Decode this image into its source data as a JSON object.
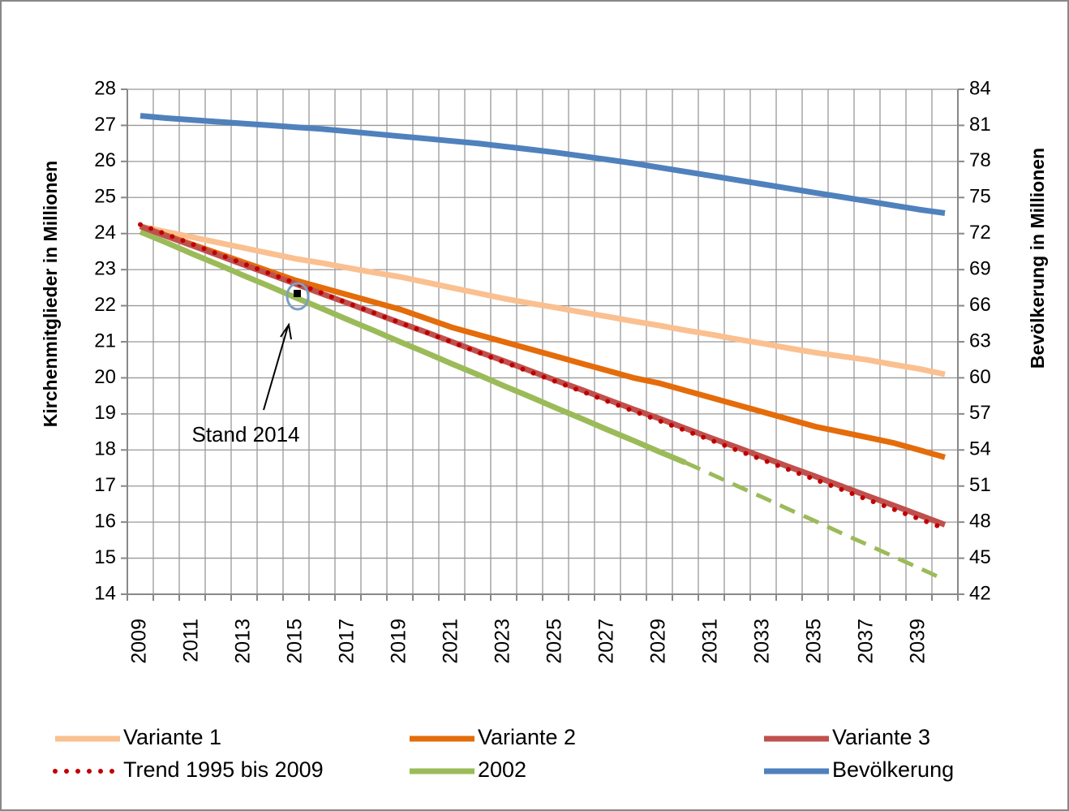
{
  "chart_data": {
    "type": "line",
    "categories": [
      "2009",
      null,
      "2011",
      null,
      "2013",
      null,
      "2015",
      null,
      "2017",
      null,
      "2019",
      null,
      "2021",
      null,
      "2023",
      null,
      "2025",
      null,
      "2027",
      null,
      "2029",
      null,
      "2031",
      null,
      "2033",
      null,
      "2035",
      null,
      "2037",
      null,
      "2039",
      null
    ],
    "y_label": "Kirchenmitglieder in Millionen",
    "y2_label": "Bevölkerung in Millionen",
    "ylim": [
      14,
      28
    ],
    "yticks": [
      14,
      15,
      16,
      17,
      18,
      19,
      20,
      21,
      22,
      23,
      24,
      25,
      26,
      27,
      28
    ],
    "y2lim": [
      42,
      84
    ],
    "y2ticks": [
      42,
      45,
      48,
      51,
      54,
      57,
      60,
      63,
      66,
      69,
      72,
      75,
      78,
      81,
      84
    ],
    "grid": true,
    "legend": "bottom",
    "annotation": "Stand 2014",
    "series": [
      {
        "name": "Variante 1",
        "color": "#fac090",
        "style": "solid",
        "values": [
          24.2,
          24.05,
          23.9,
          23.75,
          23.6,
          23.45,
          23.3,
          23.18,
          23.05,
          22.92,
          22.8,
          22.65,
          22.5,
          22.35,
          22.2,
          22.07,
          21.95,
          21.82,
          21.7,
          21.57,
          21.45,
          21.32,
          21.2,
          21.07,
          20.95,
          20.82,
          20.7,
          20.6,
          20.5,
          20.37,
          20.25,
          20.1
        ]
      },
      {
        "name": "Variante 2",
        "color": "#e46c0a",
        "style": "solid",
        "values": [
          24.2,
          23.95,
          23.7,
          23.45,
          23.2,
          22.95,
          22.7,
          22.5,
          22.3,
          22.1,
          21.9,
          21.65,
          21.4,
          21.2,
          21.0,
          20.8,
          20.6,
          20.4,
          20.2,
          20.0,
          19.85,
          19.65,
          19.45,
          19.25,
          19.05,
          18.85,
          18.65,
          18.5,
          18.35,
          18.2,
          18.0,
          17.8
        ]
      },
      {
        "name": "Variante 3",
        "color": "#c0504d",
        "style": "solid",
        "values": [
          24.2,
          23.93,
          23.67,
          23.4,
          23.13,
          22.87,
          22.6,
          22.33,
          22.07,
          21.8,
          21.53,
          21.27,
          21.0,
          20.73,
          20.47,
          20.2,
          19.93,
          19.67,
          19.4,
          19.13,
          18.87,
          18.6,
          18.33,
          18.07,
          17.8,
          17.53,
          17.27,
          17.0,
          16.73,
          16.47,
          16.2,
          15.93
        ]
      },
      {
        "name": "Trend 1995 bis 2009",
        "color": "#c00000",
        "style": "dotted",
        "values": [
          24.25,
          23.98,
          23.71,
          23.43,
          23.16,
          22.89,
          22.62,
          22.35,
          22.07,
          21.8,
          21.53,
          21.26,
          20.99,
          20.71,
          20.44,
          20.17,
          19.9,
          19.63,
          19.35,
          19.08,
          18.81,
          18.54,
          18.27,
          17.99,
          17.72,
          17.45,
          17.18,
          16.91,
          16.63,
          16.36,
          16.09,
          15.82
        ]
      },
      {
        "name": "2002",
        "color": "#9bbb59",
        "style": "solid",
        "values": [
          24.05,
          23.75,
          23.44,
          23.14,
          22.83,
          22.53,
          22.22,
          21.92,
          21.61,
          21.31,
          21.0,
          20.7,
          20.39,
          20.09,
          19.78,
          19.48,
          19.17,
          18.87,
          18.56,
          18.26,
          17.95,
          17.65,
          null,
          null,
          null,
          null,
          null,
          null,
          null,
          null,
          null,
          null
        ],
        "projected_values": [
          null,
          null,
          null,
          null,
          null,
          null,
          null,
          null,
          null,
          null,
          null,
          null,
          null,
          null,
          null,
          null,
          null,
          null,
          null,
          null,
          null,
          17.65,
          17.33,
          17.0,
          16.68,
          16.35,
          16.03,
          15.7,
          15.38,
          15.05,
          14.73,
          14.4
        ]
      },
      {
        "name": "Bevölkerung",
        "color": "#4f81bd",
        "style": "solid",
        "axis": "y2",
        "values": [
          81.8,
          81.6,
          81.45,
          81.3,
          81.15,
          81.0,
          80.85,
          80.7,
          80.5,
          80.3,
          80.1,
          79.9,
          79.7,
          79.5,
          79.25,
          79.0,
          78.75,
          78.45,
          78.15,
          77.85,
          77.5,
          77.15,
          76.8,
          76.45,
          76.1,
          75.75,
          75.4,
          75.05,
          74.7,
          74.35,
          74.0,
          73.7
        ]
      }
    ]
  }
}
